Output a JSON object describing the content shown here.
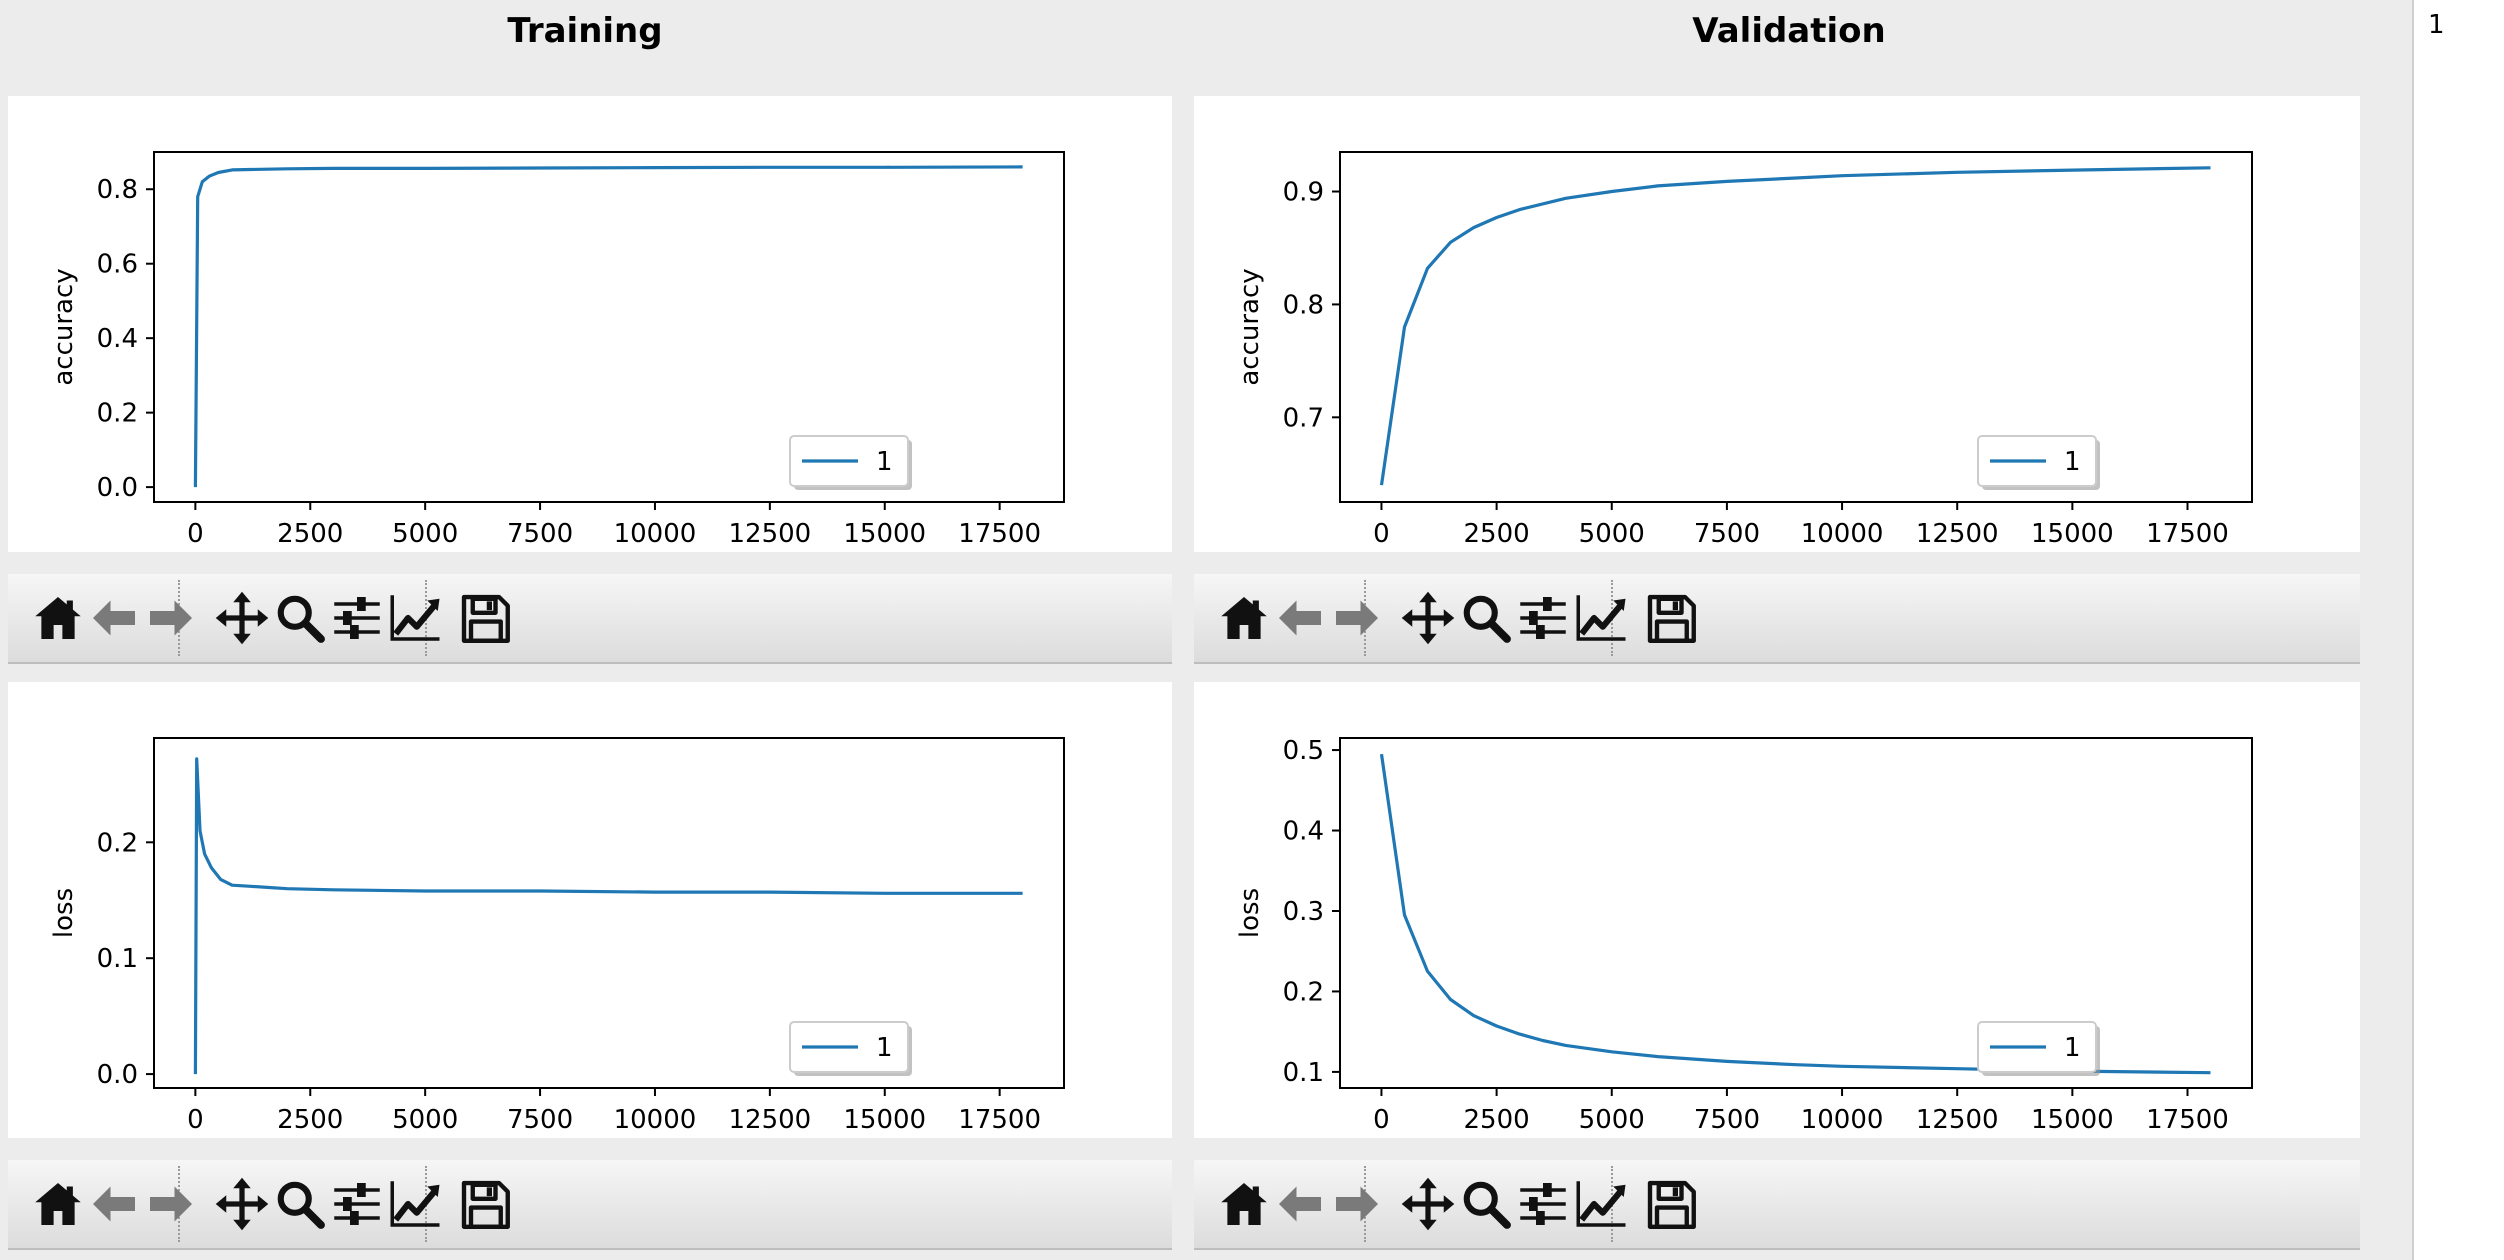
{
  "columns": {
    "training_title": "Training",
    "validation_title": "Validation"
  },
  "side_panel": {
    "items": [
      "1"
    ]
  },
  "toolbar": {
    "buttons": [
      "home",
      "back",
      "forward",
      "pan",
      "zoom",
      "subplots",
      "customize",
      "save"
    ],
    "icons": {
      "home": "home-icon",
      "back": "arrow-left-icon",
      "forward": "arrow-right-icon",
      "pan": "move-icon",
      "zoom": "magnifier-icon",
      "subplots": "sliders-icon",
      "customize": "line-chart-icon",
      "save": "floppy-disk-icon"
    },
    "icon_color": "#111111",
    "disabled_color": "#7a7a7a"
  },
  "chart_data": [
    {
      "id": "train-acc",
      "type": "line",
      "ylabel": "accuracy",
      "xlim": [
        -900,
        18900
      ],
      "ylim": [
        -0.04,
        0.9
      ],
      "xticks": [
        0,
        2500,
        5000,
        7500,
        10000,
        12500,
        15000,
        17500
      ],
      "yticks": [
        0.0,
        0.2,
        0.4,
        0.6,
        0.8
      ],
      "ytick_labels": [
        "0.0",
        "0.2",
        "0.4",
        "0.6",
        "0.8"
      ],
      "legend": "lower-right",
      "series": [
        {
          "name": "1",
          "color": "#1f77b4",
          "x": [
            0,
            50,
            150,
            300,
            500,
            800,
            1200,
            2000,
            3000,
            5000,
            7500,
            10000,
            12500,
            15000,
            18000
          ],
          "y": [
            0.0,
            0.78,
            0.82,
            0.835,
            0.845,
            0.852,
            0.853,
            0.855,
            0.856,
            0.856,
            0.857,
            0.858,
            0.859,
            0.859,
            0.86
          ]
        }
      ]
    },
    {
      "id": "val-acc",
      "type": "line",
      "ylabel": "accuracy",
      "xlim": [
        -900,
        18900
      ],
      "ylim": [
        0.625,
        0.935
      ],
      "xticks": [
        0,
        2500,
        5000,
        7500,
        10000,
        12500,
        15000,
        17500
      ],
      "yticks": [
        0.7,
        0.8,
        0.9
      ],
      "ytick_labels": [
        "0.7",
        "0.8",
        "0.9"
      ],
      "legend": "lower-right",
      "series": [
        {
          "name": "1",
          "color": "#1f77b4",
          "x": [
            0,
            500,
            1000,
            1500,
            2000,
            2500,
            3000,
            4000,
            5000,
            6000,
            7500,
            9000,
            10000,
            12500,
            15000,
            18000
          ],
          "y": [
            0.64,
            0.78,
            0.832,
            0.855,
            0.868,
            0.877,
            0.884,
            0.894,
            0.9,
            0.905,
            0.909,
            0.912,
            0.914,
            0.917,
            0.919,
            0.921
          ]
        }
      ]
    },
    {
      "id": "train-loss",
      "type": "line",
      "ylabel": "loss",
      "xlim": [
        -900,
        18900
      ],
      "ylim": [
        -0.012,
        0.29
      ],
      "xticks": [
        0,
        2500,
        5000,
        7500,
        10000,
        12500,
        15000,
        17500
      ],
      "yticks": [
        0.0,
        0.1,
        0.2
      ],
      "ytick_labels": [
        "0.0",
        "0.1",
        "0.2"
      ],
      "legend": "lower-right",
      "series": [
        {
          "name": "1",
          "color": "#1f77b4",
          "x": [
            0,
            30,
            100,
            200,
            350,
            550,
            800,
            1200,
            2000,
            3000,
            5000,
            7500,
            10000,
            12500,
            15000,
            18000
          ],
          "y": [
            0.0,
            0.272,
            0.21,
            0.19,
            0.178,
            0.168,
            0.163,
            0.162,
            0.16,
            0.159,
            0.158,
            0.158,
            0.157,
            0.157,
            0.156,
            0.156
          ]
        }
      ]
    },
    {
      "id": "val-loss",
      "type": "line",
      "ylabel": "loss",
      "xlim": [
        -900,
        18900
      ],
      "ylim": [
        0.08,
        0.515
      ],
      "xticks": [
        0,
        2500,
        5000,
        7500,
        10000,
        12500,
        15000,
        17500
      ],
      "yticks": [
        0.1,
        0.2,
        0.3,
        0.4,
        0.5
      ],
      "ytick_labels": [
        "0.1",
        "0.2",
        "0.3",
        "0.4",
        "0.5"
      ],
      "legend": "lower-right",
      "series": [
        {
          "name": "1",
          "color": "#1f77b4",
          "x": [
            0,
            500,
            1000,
            1500,
            2000,
            2500,
            3000,
            3500,
            4000,
            5000,
            6000,
            7500,
            9000,
            10000,
            12500,
            15000,
            18000
          ],
          "y": [
            0.495,
            0.295,
            0.225,
            0.19,
            0.17,
            0.157,
            0.147,
            0.139,
            0.133,
            0.125,
            0.119,
            0.113,
            0.109,
            0.107,
            0.104,
            0.101,
            0.099
          ]
        }
      ]
    }
  ]
}
